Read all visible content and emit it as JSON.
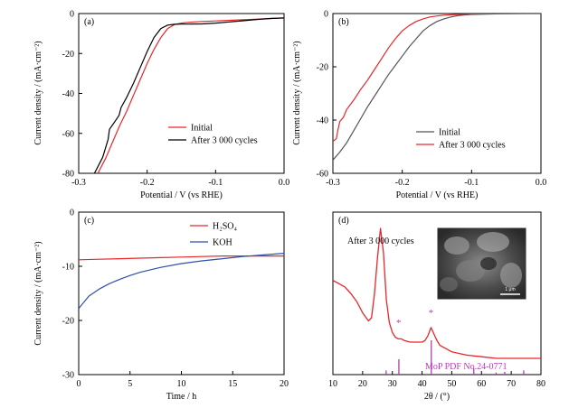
{
  "chart_data": [
    {
      "type": "line",
      "panel_label": "(a)",
      "xlabel": "Potential / V (vs RHE)",
      "ylabel": "Current density / (mA·cm⁻²)",
      "xlim": [
        -0.3,
        0.0
      ],
      "ylim": [
        -80,
        0
      ],
      "x_ticks": [
        "-0.3",
        "-0.2",
        "-0.1",
        "0.0"
      ],
      "y_ticks": [
        "0",
        "-20",
        "-40",
        "-60",
        "-80"
      ],
      "legend_position": "bottom-center",
      "series": [
        {
          "name": "Initial",
          "color": "#e8262a",
          "x": [
            -0.272,
            -0.26,
            -0.25,
            -0.24,
            -0.23,
            -0.22,
            -0.21,
            -0.2,
            -0.19,
            -0.18,
            -0.17,
            -0.16,
            -0.15,
            -0.14,
            -0.12,
            -0.1,
            -0.08,
            -0.06,
            -0.04,
            -0.02,
            0.0
          ],
          "y": [
            -80,
            -72,
            -64,
            -56,
            -49,
            -41,
            -33,
            -25,
            -18,
            -12,
            -7.5,
            -5.5,
            -4.8,
            -4.4,
            -4.0,
            -3.7,
            -3.4,
            -3.1,
            -2.8,
            -2.5,
            -2.2
          ]
        },
        {
          "name": "After 3 000 cycles",
          "color": "#000000",
          "x": [
            -0.277,
            -0.265,
            -0.257,
            -0.255,
            -0.245,
            -0.241,
            -0.238,
            -0.23,
            -0.22,
            -0.21,
            -0.2,
            -0.19,
            -0.18,
            -0.17,
            -0.16,
            -0.15,
            -0.14,
            -0.12,
            -0.1,
            -0.08,
            -0.06,
            -0.04,
            -0.02,
            0.0
          ],
          "y": [
            -80,
            -72,
            -63,
            -58,
            -53,
            -51,
            -47,
            -42,
            -35,
            -27,
            -19,
            -12,
            -7.5,
            -5.8,
            -5.4,
            -5.3,
            -5.3,
            -5.2,
            -4.8,
            -4.2,
            -3.6,
            -3.0,
            -2.5,
            -2.2
          ]
        }
      ]
    },
    {
      "type": "line",
      "panel_label": "(b)",
      "xlabel": "Potential / V (vs RHE)",
      "ylabel": "Current density / (mA·cm⁻²)",
      "xlim": [
        -0.3,
        0.0
      ],
      "ylim": [
        -60,
        0
      ],
      "x_ticks": [
        "-0.3",
        "-0.2",
        "-0.1",
        "0.0"
      ],
      "y_ticks": [
        "0",
        "-20",
        "-40",
        "-60"
      ],
      "legend_position": "bottom-center",
      "series": [
        {
          "name": "Initial",
          "color": "#555555",
          "x": [
            -0.3,
            -0.29,
            -0.28,
            -0.27,
            -0.26,
            -0.25,
            -0.24,
            -0.23,
            -0.22,
            -0.21,
            -0.2,
            -0.19,
            -0.18,
            -0.17,
            -0.16,
            -0.15,
            -0.14,
            -0.13,
            -0.12,
            -0.11,
            -0.1,
            -0.08,
            -0.06,
            -0.04,
            -0.02,
            0.0
          ],
          "y": [
            -55,
            -52,
            -48.5,
            -44,
            -39.5,
            -35,
            -31,
            -27,
            -23,
            -19.5,
            -16,
            -12.5,
            -9.5,
            -6.5,
            -4.5,
            -3.0,
            -2.0,
            -1.3,
            -0.8,
            -0.5,
            -0.35,
            -0.2,
            -0.1,
            -0.05,
            0.0,
            0.0
          ]
        },
        {
          "name": "After 3 000 cycles",
          "color": "#e8262a",
          "x": [
            -0.3,
            -0.295,
            -0.293,
            -0.29,
            -0.285,
            -0.28,
            -0.27,
            -0.26,
            -0.25,
            -0.24,
            -0.23,
            -0.22,
            -0.21,
            -0.2,
            -0.19,
            -0.18,
            -0.17,
            -0.16,
            -0.15,
            -0.14,
            -0.12,
            -0.1,
            -0.08,
            -0.06,
            -0.04,
            -0.02,
            0.0
          ],
          "y": [
            -48,
            -47,
            -44,
            -40.5,
            -39,
            -36,
            -32.5,
            -28.5,
            -25,
            -21,
            -17,
            -13,
            -9.5,
            -6.5,
            -4.5,
            -3.0,
            -2.0,
            -1.3,
            -0.9,
            -0.6,
            -0.35,
            -0.2,
            -0.1,
            -0.05,
            0.0,
            0.0,
            0.0
          ]
        }
      ]
    },
    {
      "type": "line",
      "panel_label": "(c)",
      "xlabel": "Time / h",
      "ylabel": "Current density / (mA·cm⁻²)",
      "xlim": [
        0,
        20
      ],
      "ylim": [
        -30,
        0
      ],
      "x_ticks": [
        "0",
        "5",
        "10",
        "15",
        "20"
      ],
      "y_ticks": [
        "0",
        "-10",
        "-20",
        "-30"
      ],
      "legend_position": "top-right",
      "series": [
        {
          "name": "H₂SO₄",
          "color": "#e8262a",
          "x": [
            0,
            2,
            4,
            6,
            8,
            10,
            12,
            14,
            16,
            18,
            20
          ],
          "y": [
            -8.8,
            -8.7,
            -8.6,
            -8.5,
            -8.4,
            -8.3,
            -8.2,
            -8.1,
            -8.1,
            -8.1,
            -8.1
          ]
        },
        {
          "name": "KOH",
          "color": "#2f4fa8",
          "x": [
            0,
            1,
            2,
            3,
            4,
            5,
            6,
            8,
            10,
            12,
            14,
            16,
            18,
            20
          ],
          "y": [
            -17.8,
            -15.5,
            -14.2,
            -13.2,
            -12.4,
            -11.7,
            -11.1,
            -10.2,
            -9.5,
            -9.0,
            -8.6,
            -8.2,
            -7.9,
            -7.6
          ]
        }
      ]
    },
    {
      "type": "line",
      "panel_label": "(d)",
      "xlabel": "2θ / (°)",
      "xlim": [
        10,
        80
      ],
      "x_ticks": [
        "10",
        "20",
        "30",
        "40",
        "50",
        "60",
        "70",
        "80"
      ],
      "annotation": "After 3 000 cycles",
      "marker_symbol": "*",
      "reference_label": "MoP PDF No.24-0771",
      "scale_bar_label": "1 μm",
      "reference_peaks_2theta": [
        27.9,
        32.2,
        43.1,
        57.4,
        64.9,
        67.8,
        74.2
      ],
      "reference_intensity": [
        0.12,
        0.45,
        1.0,
        0.18,
        0.06,
        0.08,
        0.12
      ],
      "series": [
        {
          "name": "",
          "color": "#e8262a",
          "x": [
            10,
            12,
            14,
            16,
            18,
            20,
            22,
            23,
            24,
            25,
            26,
            27,
            28,
            29,
            30,
            31,
            32,
            33,
            34,
            36,
            38,
            40,
            41,
            42,
            43,
            44,
            45,
            46,
            48,
            50,
            55,
            60,
            65,
            70,
            75,
            80
          ],
          "y": [
            0.58,
            0.56,
            0.54,
            0.5,
            0.45,
            0.38,
            0.33,
            0.35,
            0.5,
            0.72,
            0.9,
            0.75,
            0.46,
            0.32,
            0.26,
            0.23,
            0.22,
            0.22,
            0.21,
            0.2,
            0.2,
            0.2,
            0.21,
            0.24,
            0.29,
            0.25,
            0.21,
            0.18,
            0.16,
            0.14,
            0.12,
            0.11,
            0.1,
            0.1,
            0.1,
            0.1
          ]
        }
      ]
    }
  ]
}
